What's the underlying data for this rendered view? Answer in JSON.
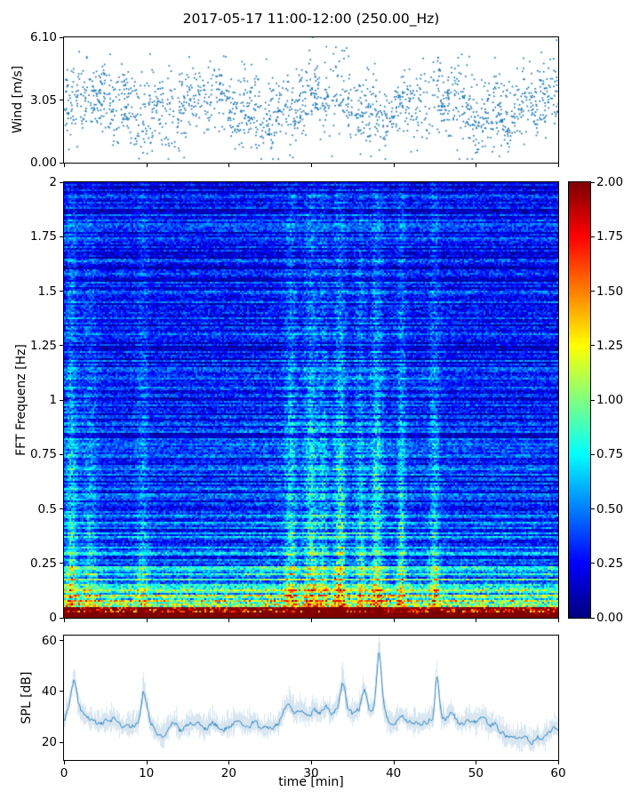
{
  "figure": {
    "title": "2017-05-17 11:00-12:00 (250.00_Hz)",
    "background": "#ffffff",
    "accent_color": "#1f77b4"
  },
  "chart_data": [
    {
      "type": "scatter",
      "name": "wind-speed",
      "ylabel": "Wind [m/s]",
      "ylim": [
        0,
        6.1
      ],
      "yticks": [
        "0.00",
        "3.05",
        "6.10"
      ],
      "ytick_values": [
        0,
        3.05,
        6.1
      ],
      "xlim": [
        0,
        60
      ],
      "marker_color": "#1f77b4",
      "synthesis": {
        "n_points": 1750,
        "mean": 2.75,
        "std": 0.95,
        "min": 0.18,
        "max": 6.1,
        "seed": 1234
      }
    },
    {
      "type": "heatmap",
      "name": "fft-spectrogram",
      "ylabel": "FFT Frequenz [Hz]",
      "ylim": [
        0,
        2
      ],
      "yticks": [
        "0",
        "0.25",
        "0.5",
        "0.75",
        "1",
        "1.25",
        "1.5",
        "1.75",
        "2"
      ],
      "ytick_values": [
        0,
        0.25,
        0.5,
        0.75,
        1,
        1.25,
        1.5,
        1.75,
        2
      ],
      "xlim": [
        0,
        60
      ],
      "colormap": "jet",
      "vmin": 0,
      "vmax": 2,
      "synthesis": {
        "rows": 245,
        "cols": 278,
        "seed": 99,
        "streaks": [
          [
            0.8,
            0.5,
            0.55
          ],
          [
            3,
            0.7,
            0.3
          ],
          [
            9.5,
            0.5,
            0.3
          ],
          [
            27.5,
            0.5,
            0.45
          ],
          [
            30,
            0.6,
            0.5
          ],
          [
            31.5,
            0.4,
            0.35
          ],
          [
            33.5,
            0.5,
            0.55
          ],
          [
            36,
            0.4,
            0.4
          ],
          [
            38,
            0.5,
            0.55
          ],
          [
            41,
            0.35,
            0.5
          ],
          [
            45,
            0.4,
            0.45
          ]
        ]
      }
    },
    {
      "type": "line",
      "name": "spl",
      "ylabel": "SPL [dB]",
      "xlabel": "time [min]",
      "ylim": [
        13,
        62
      ],
      "yticks": [
        "20",
        "40",
        "60"
      ],
      "ytick_values": [
        20,
        40,
        60
      ],
      "xticks": [
        "0",
        "10",
        "20",
        "30",
        "40",
        "50",
        "60"
      ],
      "xtick_values": [
        0,
        10,
        20,
        30,
        40,
        50,
        60
      ],
      "line_color": "#1f77b4",
      "noise_seed": 77,
      "keypoints": [
        [
          0,
          29
        ],
        [
          0.4,
          33
        ],
        [
          1.2,
          46
        ],
        [
          1.7,
          34
        ],
        [
          2.2,
          31
        ],
        [
          3,
          29
        ],
        [
          4,
          27
        ],
        [
          5,
          28
        ],
        [
          6,
          29
        ],
        [
          7,
          26
        ],
        [
          8,
          26
        ],
        [
          9,
          28
        ],
        [
          9.6,
          42
        ],
        [
          10.3,
          29
        ],
        [
          11,
          24
        ],
        [
          12,
          22
        ],
        [
          12.6,
          26
        ],
        [
          13.4,
          28
        ],
        [
          14,
          24
        ],
        [
          15,
          27
        ],
        [
          16,
          28
        ],
        [
          17,
          25
        ],
        [
          18,
          28
        ],
        [
          19,
          25
        ],
        [
          20,
          26
        ],
        [
          21,
          29
        ],
        [
          22,
          26
        ],
        [
          23,
          28
        ],
        [
          24,
          25
        ],
        [
          25,
          26
        ],
        [
          26,
          27
        ],
        [
          26.8,
          34
        ],
        [
          27.3,
          36
        ],
        [
          28,
          31
        ],
        [
          28.7,
          33
        ],
        [
          29.5,
          30
        ],
        [
          30.3,
          33
        ],
        [
          31,
          31
        ],
        [
          31.8,
          34
        ],
        [
          32.5,
          31
        ],
        [
          33.2,
          34
        ],
        [
          33.8,
          46
        ],
        [
          34.4,
          32
        ],
        [
          35,
          31
        ],
        [
          35.8,
          33
        ],
        [
          36.4,
          42
        ],
        [
          37,
          32
        ],
        [
          37.6,
          34
        ],
        [
          38.2,
          60
        ],
        [
          38.7,
          34
        ],
        [
          39.3,
          28
        ],
        [
          40,
          27
        ],
        [
          40.8,
          31
        ],
        [
          41.3,
          29
        ],
        [
          42,
          28
        ],
        [
          43,
          27
        ],
        [
          44,
          28
        ],
        [
          44.8,
          30
        ],
        [
          45.2,
          50
        ],
        [
          45.7,
          30
        ],
        [
          46.3,
          28
        ],
        [
          47,
          33
        ],
        [
          47.6,
          28
        ],
        [
          48.3,
          27
        ],
        [
          49,
          29
        ],
        [
          50,
          28
        ],
        [
          50.8,
          30
        ],
        [
          51.5,
          26
        ],
        [
          52.3,
          27
        ],
        [
          53,
          24
        ],
        [
          54,
          22
        ],
        [
          55,
          21
        ],
        [
          56,
          22
        ],
        [
          56.6,
          19
        ],
        [
          57.3,
          22
        ],
        [
          58,
          21
        ],
        [
          58.6,
          23
        ],
        [
          59.3,
          26
        ],
        [
          60,
          25
        ]
      ]
    }
  ],
  "colorbar": {
    "ticks": [
      "0.00",
      "0.25",
      "0.50",
      "0.75",
      "1.00",
      "1.25",
      "1.50",
      "1.75",
      "2.00"
    ],
    "tick_values": [
      0,
      0.25,
      0.5,
      0.75,
      1,
      1.25,
      1.5,
      1.75,
      2
    ],
    "vmin": 0,
    "vmax": 2,
    "colormap": "jet"
  }
}
